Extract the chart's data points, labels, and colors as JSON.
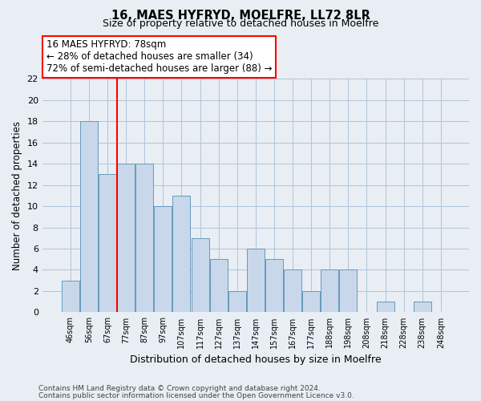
{
  "title1": "16, MAES HYFRYD, MOELFRE, LL72 8LR",
  "title2": "Size of property relative to detached houses in Moelfre",
  "xlabel": "Distribution of detached houses by size in Moelfre",
  "ylabel": "Number of detached properties",
  "categories": [
    "46sqm",
    "56sqm",
    "67sqm",
    "77sqm",
    "87sqm",
    "97sqm",
    "107sqm",
    "117sqm",
    "127sqm",
    "137sqm",
    "147sqm",
    "157sqm",
    "167sqm",
    "177sqm",
    "188sqm",
    "198sqm",
    "208sqm",
    "218sqm",
    "228sqm",
    "238sqm",
    "248sqm"
  ],
  "values": [
    3,
    18,
    13,
    14,
    14,
    10,
    11,
    7,
    5,
    2,
    6,
    5,
    4,
    2,
    4,
    4,
    0,
    1,
    0,
    1,
    0
  ],
  "bar_color": "#c8d8ea",
  "bar_edge_color": "#6699bb",
  "ylim": [
    0,
    22
  ],
  "yticks": [
    0,
    2,
    4,
    6,
    8,
    10,
    12,
    14,
    16,
    18,
    20,
    22
  ],
  "red_line_x": 2.5,
  "annotation_line1": "16 MAES HYFRYD: 78sqm",
  "annotation_line2": "← 28% of detached houses are smaller (34)",
  "annotation_line3": "72% of semi-detached houses are larger (88) →",
  "footer1": "Contains HM Land Registry data © Crown copyright and database right 2024.",
  "footer2": "Contains public sector information licensed under the Open Government Licence v3.0.",
  "bg_color": "#e8eef4",
  "plot_bg_color": "#e8eef4",
  "grid_color": "#b0c4d8"
}
